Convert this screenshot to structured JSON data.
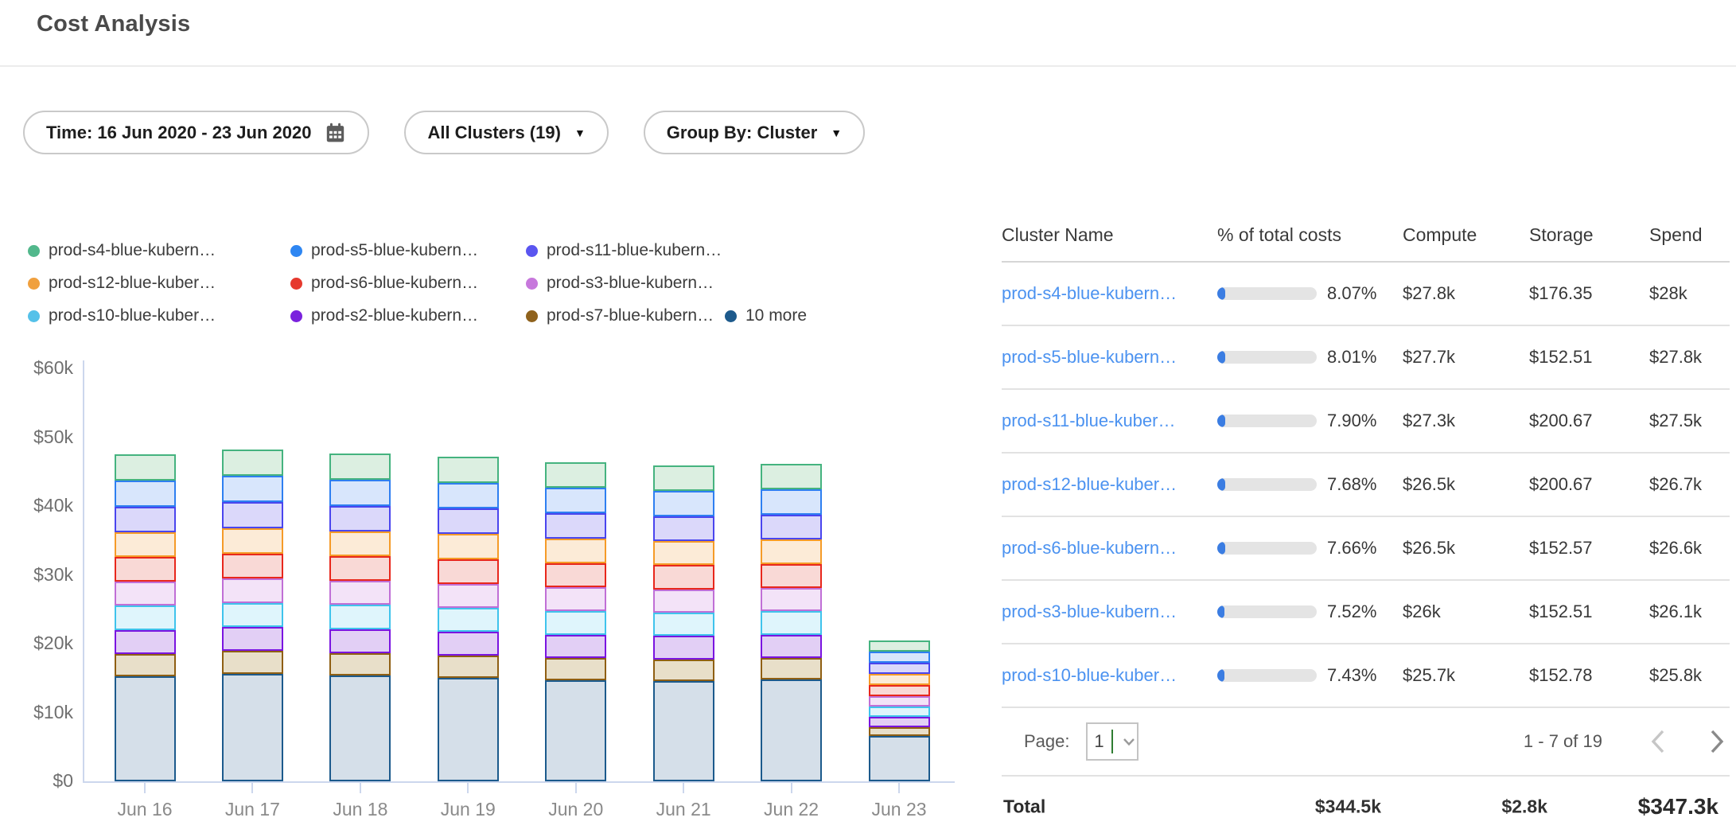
{
  "page": {
    "title": "Cost Analysis"
  },
  "filters": {
    "time_label": "Time: 16 Jun 2020 - 23 Jun 2020",
    "clusters_label": "All Clusters (19)",
    "group_by_label": "Group By: Cluster"
  },
  "chart_data": {
    "type": "stacked-bar",
    "unit": "USD thousands per day",
    "categories": [
      "Jun 16",
      "Jun 17",
      "Jun 18",
      "Jun 19",
      "Jun 20",
      "Jun 21",
      "Jun 22",
      "Jun 23"
    ],
    "y_ticks": [
      {
        "label": "$60k",
        "value": 60
      },
      {
        "label": "$50k",
        "value": 50
      },
      {
        "label": "$40k",
        "value": 40
      },
      {
        "label": "$30k",
        "value": 30
      },
      {
        "label": "$20k",
        "value": 20
      },
      {
        "label": "$10k",
        "value": 10
      },
      {
        "label": "$0",
        "value": 0
      }
    ],
    "ylim": [
      0,
      60
    ],
    "legend_position": "top",
    "stack_order": "first series renders at top of each stack",
    "series": [
      {
        "name": "prod-s4-blue-kubern…",
        "dot": "#52b88c",
        "stroke": "#45b37f",
        "fill": "#dcefe1",
        "values": [
          3.8,
          3.8,
          3.8,
          3.8,
          3.7,
          3.7,
          3.7,
          1.7
        ]
      },
      {
        "name": "prod-s5-blue-kubern…",
        "dot": "#2e86f2",
        "stroke": "#2e7ff1",
        "fill": "#d8e6fc",
        "values": [
          3.8,
          3.8,
          3.8,
          3.8,
          3.7,
          3.7,
          3.7,
          1.6
        ]
      },
      {
        "name": "prod-s11-blue-kubern…",
        "dot": "#5a55f0",
        "stroke": "#4a45ee",
        "fill": "#dbd8fa",
        "values": [
          3.7,
          3.8,
          3.7,
          3.7,
          3.7,
          3.6,
          3.6,
          1.6
        ]
      },
      {
        "name": "prod-s12-blue-kuber…",
        "dot": "#f0a03e",
        "stroke": "#f59b28",
        "fill": "#fcebd7",
        "values": [
          3.6,
          3.7,
          3.6,
          3.6,
          3.6,
          3.5,
          3.5,
          1.6
        ]
      },
      {
        "name": "prod-s6-blue-kubern…",
        "dot": "#e6392e",
        "stroke": "#e8271c",
        "fill": "#f9d9d6",
        "values": [
          3.6,
          3.6,
          3.6,
          3.6,
          3.5,
          3.5,
          3.5,
          1.6
        ]
      },
      {
        "name": "prod-s3-blue-kubern…",
        "dot": "#c778dc",
        "stroke": "#c06fd6",
        "fill": "#f3e3f8",
        "values": [
          3.5,
          3.6,
          3.5,
          3.5,
          3.5,
          3.4,
          3.4,
          1.5
        ]
      },
      {
        "name": "prod-s10-blue-kuber…",
        "dot": "#55c1e9",
        "stroke": "#3fc3ec",
        "fill": "#dff5fc",
        "values": [
          3.5,
          3.5,
          3.5,
          3.5,
          3.4,
          3.4,
          3.4,
          1.5
        ]
      },
      {
        "name": "prod-s2-blue-kubern…",
        "dot": "#7a22dd",
        "stroke": "#7a14e0",
        "fill": "#e2cff5",
        "values": [
          3.5,
          3.5,
          3.5,
          3.5,
          3.4,
          3.4,
          3.4,
          1.5
        ]
      },
      {
        "name": "prod-s7-blue-kubern…",
        "dot": "#8f621d",
        "stroke": "#8f5f13",
        "fill": "#e8dfc9",
        "values": [
          3.2,
          3.3,
          3.2,
          3.2,
          3.2,
          3.1,
          3.1,
          1.3
        ]
      },
      {
        "name": "10 more",
        "dot": "#1d5a8c",
        "stroke": "#1c5a8c",
        "fill": "#d5dfe9",
        "values": [
          15.3,
          15.6,
          15.4,
          15.0,
          14.7,
          14.6,
          14.8,
          6.6
        ]
      }
    ]
  },
  "table": {
    "columns": [
      "Cluster Name",
      "% of total costs",
      "Compute",
      "Storage",
      "Spend"
    ],
    "rows": [
      {
        "name": "prod-s4-blue-kubern…",
        "pct_label": "8.07%",
        "pct": 8.07,
        "compute": "$27.8k",
        "storage": "$176.35",
        "spend": "$28k"
      },
      {
        "name": "prod-s5-blue-kubern…",
        "pct_label": "8.01%",
        "pct": 8.01,
        "compute": "$27.7k",
        "storage": "$152.51",
        "spend": "$27.8k"
      },
      {
        "name": "prod-s11-blue-kuber…",
        "pct_label": "7.90%",
        "pct": 7.9,
        "compute": "$27.3k",
        "storage": "$200.67",
        "spend": "$27.5k"
      },
      {
        "name": "prod-s12-blue-kuber…",
        "pct_label": "7.68%",
        "pct": 7.68,
        "compute": "$26.5k",
        "storage": "$200.67",
        "spend": "$26.7k"
      },
      {
        "name": "prod-s6-blue-kubern…",
        "pct_label": "7.66%",
        "pct": 7.66,
        "compute": "$26.5k",
        "storage": "$152.57",
        "spend": "$26.6k"
      },
      {
        "name": "prod-s3-blue-kubern…",
        "pct_label": "7.52%",
        "pct": 7.52,
        "compute": "$26k",
        "storage": "$152.51",
        "spend": "$26.1k"
      },
      {
        "name": "prod-s10-blue-kuber…",
        "pct_label": "7.43%",
        "pct": 7.43,
        "compute": "$25.7k",
        "storage": "$152.78",
        "spend": "$25.8k"
      }
    ],
    "pagination": {
      "page_label": "Page:",
      "page_value": "1",
      "range_label": "1 - 7 of 19"
    },
    "total": {
      "label": "Total",
      "compute": "$344.5k",
      "storage": "$2.8k",
      "spend": "$347.3k"
    }
  },
  "colors": {
    "link": "#4b92f0",
    "progress_track": "#e4e4e4",
    "progress_fill": "#3b7de2",
    "axis": "#ccd7ed",
    "page_caret_green": "#2f7d32"
  }
}
